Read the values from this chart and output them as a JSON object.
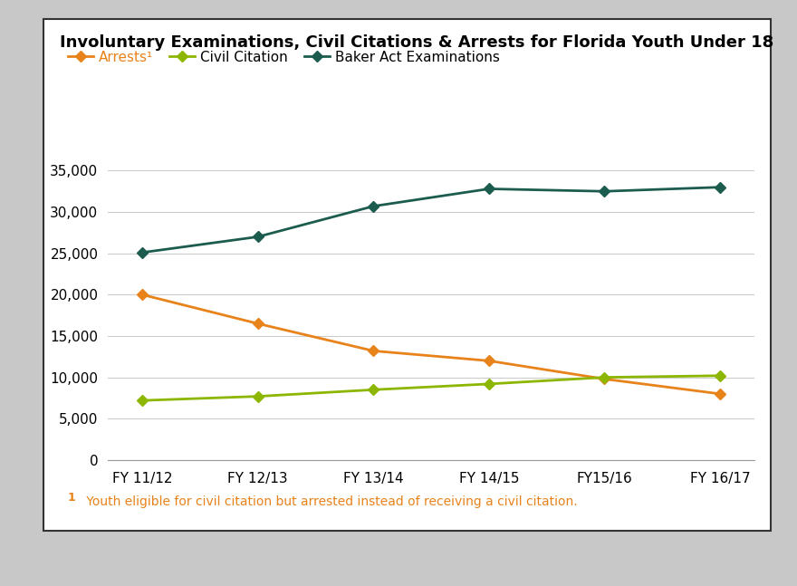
{
  "title": "Involuntary Examinations, Civil Citations & Arrests for Florida Youth Under 18",
  "x_labels": [
    "FY 11/12",
    "FY 12/13",
    "FY 13/14",
    "FY 14/15",
    "FY15/16",
    "FY 16/17"
  ],
  "arrests": [
    20000,
    16500,
    13200,
    12000,
    9800,
    8000
  ],
  "civil_citation": [
    7200,
    7700,
    8500,
    9200,
    10000,
    10200
  ],
  "baker_act": [
    25100,
    27000,
    30700,
    32800,
    32500,
    33000
  ],
  "arrests_color": "#E8821A",
  "civil_citation_color": "#8DB600",
  "baker_act_color": "#1C5C4F",
  "footnote_superscript": "1",
  "footnote_text": " Youth eligible for civil citation but arrested instead of receiving a civil citation.",
  "footnote_color": "#E8821A",
  "ylim": [
    0,
    37000
  ],
  "yticks": [
    0,
    5000,
    10000,
    15000,
    20000,
    25000,
    30000,
    35000
  ],
  "background_color": "#FFFFFF",
  "border_color": "#333333",
  "outer_background": "#C8C8C8",
  "title_fontsize": 13,
  "legend_fontsize": 11,
  "tick_fontsize": 11
}
